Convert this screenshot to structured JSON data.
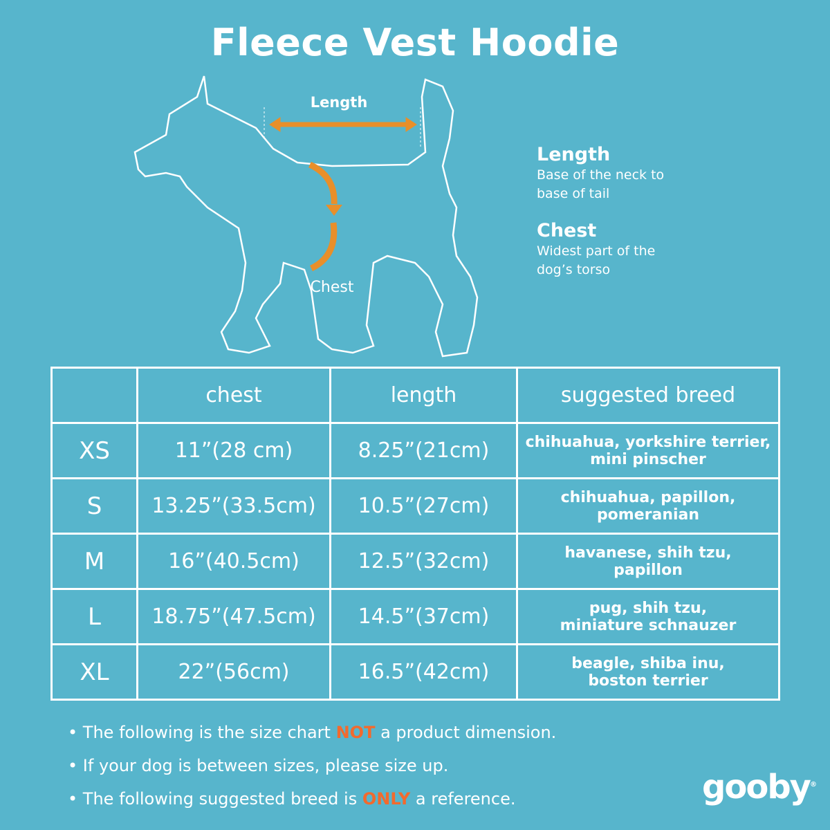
{
  "title": "Fleece Vest Hoodie",
  "diagram": {
    "length_label": "Length",
    "chest_label": "Chest",
    "arrow_color": "#e88f2a"
  },
  "legend": [
    {
      "heading": "Length",
      "text": "Base of the neck to base of tail"
    },
    {
      "heading": "Chest",
      "text": "Widest part of the dog’s torso"
    }
  ],
  "table": {
    "headers": [
      "",
      "chest",
      "length",
      "suggested breed"
    ],
    "rows": [
      {
        "size": "XS",
        "chest": "11”(28 cm)",
        "length": "8.25”(21cm)",
        "breed": [
          "chihuahua, yorkshire terrier,",
          "mini pinscher"
        ]
      },
      {
        "size": "S",
        "chest": "13.25”(33.5cm)",
        "length": "10.5”(27cm)",
        "breed": [
          "chihuahua, papillon,",
          "pomeranian"
        ]
      },
      {
        "size": "M",
        "chest": "16”(40.5cm)",
        "length": "12.5”(32cm)",
        "breed": [
          "havanese, shih tzu,",
          "papillon"
        ]
      },
      {
        "size": "L",
        "chest": "18.75”(47.5cm)",
        "length": "14.5”(37cm)",
        "breed": [
          "pug, shih tzu,",
          "miniature schnauzer"
        ]
      },
      {
        "size": "XL",
        "chest": "22”(56cm)",
        "length": "16.5”(42cm)",
        "breed": [
          "beagle, shiba inu,",
          "boston terrier"
        ]
      }
    ]
  },
  "notes": [
    {
      "before": "The following is  the size chart ",
      "accent": "NOT",
      "after": " a product dimension."
    },
    {
      "before": "If your dog is between sizes, please size up.",
      "accent": "",
      "after": ""
    },
    {
      "before": "The following suggested breed is ",
      "accent": "ONLY",
      "after": " a reference."
    }
  ],
  "brand": {
    "logo": "gooby",
    "mark": "®"
  },
  "colors": {
    "background": "#57b5cc",
    "accent": "#f26a2e"
  }
}
